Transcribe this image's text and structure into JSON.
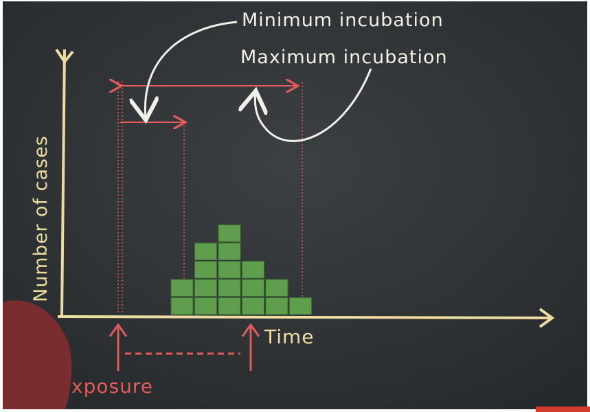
{
  "annotations": {
    "min": "Minimum incubation",
    "max": "Maximum incubation"
  },
  "axes": {
    "y": "Number of cases",
    "x": "Time"
  },
  "exposure": "xposure",
  "epidemic_curve": {
    "columns": [
      2,
      4,
      5,
      3,
      2,
      1
    ],
    "color": "#5f9e4c"
  }
}
